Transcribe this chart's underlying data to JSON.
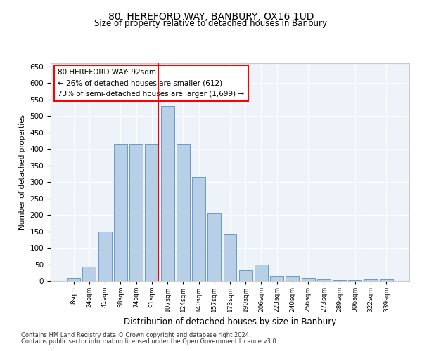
{
  "title1": "80, HEREFORD WAY, BANBURY, OX16 1UD",
  "title2": "Size of property relative to detached houses in Banbury",
  "xlabel": "Distribution of detached houses by size in Banbury",
  "ylabel": "Number of detached properties",
  "categories": [
    "8sqm",
    "24sqm",
    "41sqm",
    "58sqm",
    "74sqm",
    "91sqm",
    "107sqm",
    "124sqm",
    "140sqm",
    "157sqm",
    "173sqm",
    "190sqm",
    "206sqm",
    "223sqm",
    "240sqm",
    "256sqm",
    "273sqm",
    "289sqm",
    "306sqm",
    "322sqm",
    "339sqm"
  ],
  "values": [
    8,
    43,
    150,
    415,
    415,
    415,
    530,
    415,
    315,
    205,
    140,
    33,
    48,
    15,
    15,
    8,
    4,
    2,
    2,
    5,
    5
  ],
  "bar_color": "#b8cfe8",
  "bar_edge_color": "#5a8fc0",
  "red_line_index": 5,
  "annotation_lines": [
    "80 HEREFORD WAY: 92sqm",
    "← 26% of detached houses are smaller (612)",
    "73% of semi-detached houses are larger (1,699) →"
  ],
  "ylim": [
    0,
    660
  ],
  "yticks": [
    0,
    50,
    100,
    150,
    200,
    250,
    300,
    350,
    400,
    450,
    500,
    550,
    600,
    650
  ],
  "background_color": "#eef2f9",
  "grid_color": "#ffffff",
  "footnote1": "Contains HM Land Registry data © Crown copyright and database right 2024.",
  "footnote2": "Contains public sector information licensed under the Open Government Licence v3.0."
}
